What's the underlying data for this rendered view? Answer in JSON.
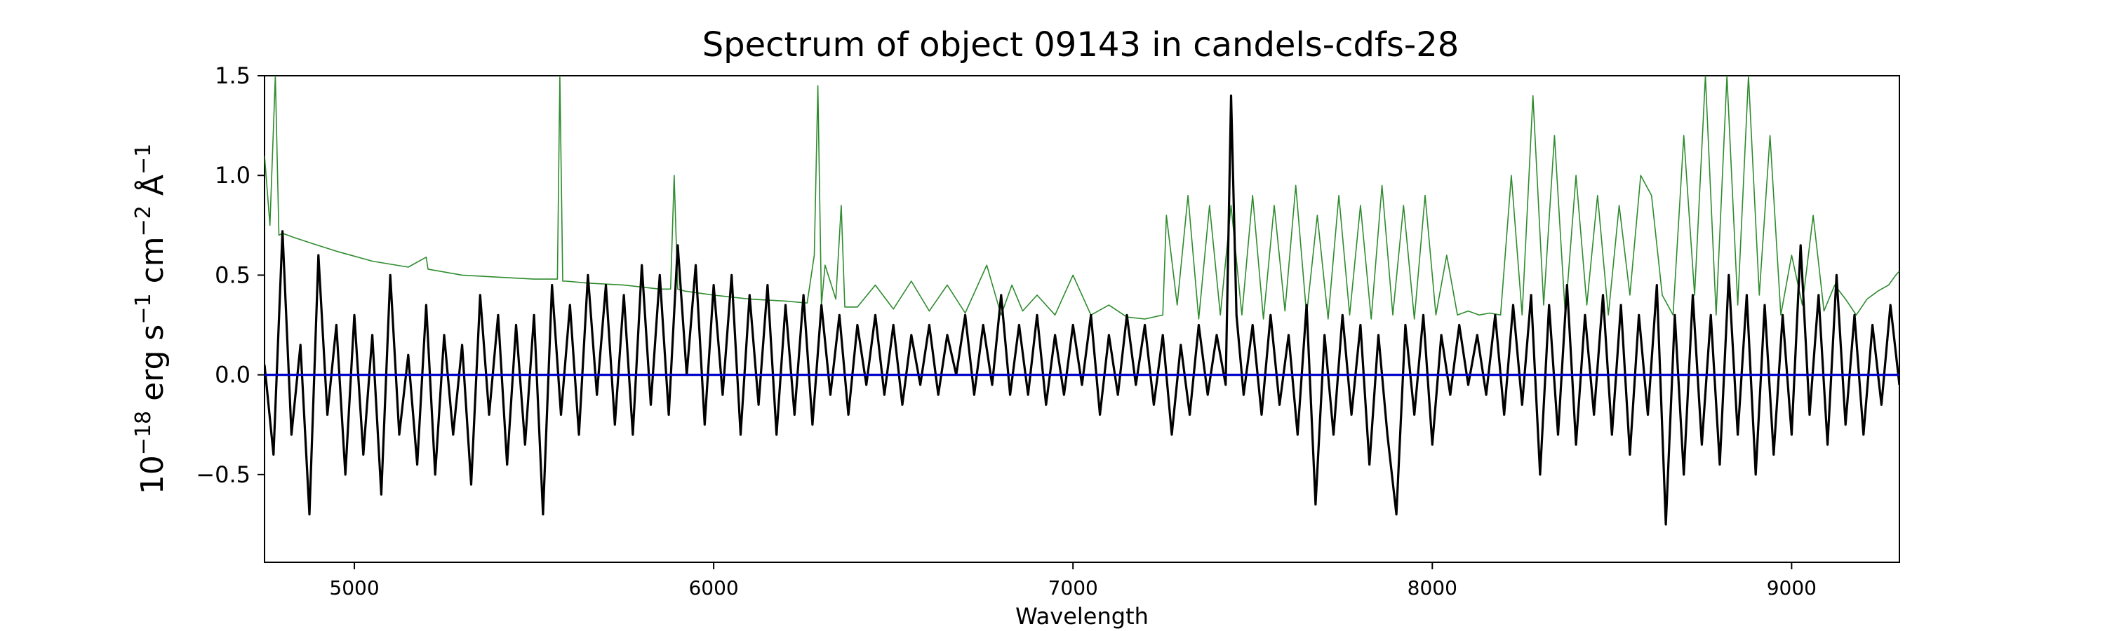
{
  "chart_data": {
    "type": "line",
    "title": "Spectrum of object 09143 in candels-cdfs-28",
    "xlabel": "Wavelength",
    "ylabel": {
      "base": "10",
      "exp": "−18",
      "u1": " erg s",
      "e1": "−1",
      "u2": " cm",
      "e2": "−2",
      "u3": " Å",
      "e3": "−1"
    },
    "xlim": [
      4750,
      9300
    ],
    "ylim": [
      -0.94,
      1.5
    ],
    "xticks": [
      5000,
      6000,
      7000,
      8000,
      9000
    ],
    "xtick_labels": [
      "5000",
      "6000",
      "7000",
      "8000",
      "9000"
    ],
    "yticks": [
      -0.5,
      0.0,
      0.5,
      1.0,
      1.5
    ],
    "ytick_labels": [
      "−0.5",
      "0.0",
      "0.5",
      "1.0",
      "1.5"
    ],
    "grid": false,
    "series": [
      {
        "role": "flux",
        "color": "#000000",
        "x": [
          4750,
          4775,
          4800,
          4825,
          4850,
          4875,
          4900,
          4925,
          4950,
          4975,
          5000,
          5025,
          5050,
          5075,
          5100,
          5125,
          5150,
          5175,
          5200,
          5225,
          5250,
          5275,
          5300,
          5325,
          5350,
          5375,
          5400,
          5425,
          5450,
          5475,
          5500,
          5525,
          5550,
          5575,
          5600,
          5625,
          5650,
          5675,
          5700,
          5725,
          5750,
          5775,
          5800,
          5825,
          5850,
          5875,
          5900,
          5925,
          5950,
          5975,
          6000,
          6025,
          6050,
          6075,
          6100,
          6125,
          6150,
          6175,
          6200,
          6225,
          6250,
          6275,
          6300,
          6325,
          6350,
          6375,
          6400,
          6425,
          6450,
          6475,
          6500,
          6525,
          6550,
          6575,
          6600,
          6625,
          6650,
          6675,
          6700,
          6725,
          6750,
          6775,
          6800,
          6825,
          6850,
          6875,
          6900,
          6925,
          6950,
          6975,
          7000,
          7025,
          7050,
          7075,
          7100,
          7125,
          7150,
          7175,
          7200,
          7225,
          7250,
          7275,
          7300,
          7325,
          7350,
          7375,
          7400,
          7425,
          7440,
          7455,
          7475,
          7500,
          7525,
          7550,
          7575,
          7600,
          7625,
          7650,
          7675,
          7700,
          7725,
          7750,
          7775,
          7800,
          7825,
          7850,
          7875,
          7900,
          7925,
          7950,
          7975,
          8000,
          8025,
          8050,
          8075,
          8100,
          8125,
          8150,
          8175,
          8200,
          8225,
          8250,
          8275,
          8300,
          8325,
          8350,
          8375,
          8400,
          8425,
          8450,
          8475,
          8500,
          8525,
          8550,
          8575,
          8600,
          8625,
          8650,
          8675,
          8700,
          8725,
          8750,
          8775,
          8800,
          8825,
          8850,
          8875,
          8900,
          8925,
          8950,
          8975,
          9000,
          9025,
          9050,
          9075,
          9100,
          9125,
          9150,
          9175,
          9200,
          9225,
          9250,
          9275,
          9300
        ],
        "y": [
          0.05,
          -0.4,
          0.72,
          -0.3,
          0.15,
          -0.7,
          0.6,
          -0.2,
          0.25,
          -0.5,
          0.3,
          -0.4,
          0.2,
          -0.6,
          0.5,
          -0.3,
          0.1,
          -0.45,
          0.35,
          -0.5,
          0.2,
          -0.3,
          0.15,
          -0.55,
          0.4,
          -0.2,
          0.3,
          -0.45,
          0.25,
          -0.35,
          0.3,
          -0.7,
          0.45,
          -0.2,
          0.35,
          -0.3,
          0.5,
          -0.1,
          0.45,
          -0.25,
          0.4,
          -0.3,
          0.55,
          -0.15,
          0.5,
          -0.2,
          0.65,
          0.0,
          0.55,
          -0.25,
          0.45,
          -0.1,
          0.5,
          -0.3,
          0.4,
          -0.15,
          0.45,
          -0.3,
          0.35,
          -0.2,
          0.4,
          -0.25,
          0.35,
          -0.1,
          0.3,
          -0.2,
          0.25,
          -0.05,
          0.3,
          -0.1,
          0.25,
          -0.15,
          0.2,
          -0.05,
          0.25,
          -0.1,
          0.2,
          0.0,
          0.3,
          -0.1,
          0.25,
          -0.05,
          0.4,
          -0.1,
          0.25,
          -0.1,
          0.3,
          -0.15,
          0.2,
          -0.1,
          0.25,
          -0.05,
          0.3,
          -0.2,
          0.2,
          -0.1,
          0.3,
          -0.05,
          0.25,
          -0.15,
          0.2,
          -0.3,
          0.15,
          -0.2,
          0.25,
          -0.1,
          0.2,
          -0.05,
          1.4,
          0.3,
          -0.1,
          0.25,
          -0.2,
          0.3,
          -0.15,
          0.2,
          -0.3,
          0.35,
          -0.65,
          0.2,
          -0.3,
          0.3,
          -0.2,
          0.25,
          -0.45,
          0.2,
          -0.3,
          -0.7,
          0.25,
          -0.2,
          0.3,
          -0.35,
          0.2,
          -0.1,
          0.25,
          -0.05,
          0.2,
          -0.1,
          0.3,
          -0.2,
          0.35,
          -0.15,
          0.4,
          -0.5,
          0.35,
          -0.3,
          0.45,
          -0.35,
          0.3,
          -0.2,
          0.4,
          -0.3,
          0.35,
          -0.4,
          0.3,
          -0.2,
          0.45,
          -0.75,
          0.3,
          -0.5,
          0.4,
          -0.35,
          0.3,
          -0.45,
          0.5,
          -0.3,
          0.4,
          -0.5,
          0.35,
          -0.4,
          0.3,
          -0.3,
          0.65,
          -0.2,
          0.4,
          -0.35,
          0.5,
          -0.25,
          0.3,
          -0.3,
          0.25,
          -0.15,
          0.35,
          -0.05
        ]
      },
      {
        "role": "error",
        "color": "#2e8b2e",
        "x": [
          4750,
          4765,
          4780,
          4790,
          4800,
          4830,
          4880,
          4950,
          5050,
          5150,
          5200,
          5205,
          5300,
          5400,
          5500,
          5565,
          5572,
          5580,
          5590,
          5650,
          5750,
          5850,
          5880,
          5890,
          5900,
          5920,
          6000,
          6100,
          6200,
          6260,
          6280,
          6290,
          6300,
          6310,
          6340,
          6355,
          6365,
          6400,
          6450,
          6500,
          6550,
          6600,
          6650,
          6700,
          6760,
          6800,
          6830,
          6860,
          6900,
          6950,
          7000,
          7050,
          7100,
          7150,
          7200,
          7250,
          7260,
          7290,
          7320,
          7350,
          7380,
          7410,
          7440,
          7470,
          7500,
          7530,
          7560,
          7590,
          7620,
          7650,
          7680,
          7710,
          7740,
          7770,
          7800,
          7830,
          7860,
          7890,
          7920,
          7950,
          7980,
          8010,
          8040,
          8070,
          8100,
          8130,
          8160,
          8190,
          8220,
          8250,
          8280,
          8310,
          8340,
          8370,
          8400,
          8430,
          8460,
          8490,
          8520,
          8550,
          8580,
          8610,
          8640,
          8670,
          8700,
          8730,
          8760,
          8790,
          8820,
          8850,
          8880,
          8910,
          8940,
          8970,
          9000,
          9030,
          9060,
          9090,
          9120,
          9150,
          9180,
          9210,
          9240,
          9270,
          9290,
          9300
        ],
        "y": [
          1.1,
          0.75,
          1.5,
          0.7,
          0.71,
          0.69,
          0.66,
          0.62,
          0.57,
          0.54,
          0.59,
          0.53,
          0.5,
          0.49,
          0.48,
          0.48,
          1.5,
          0.47,
          0.47,
          0.46,
          0.45,
          0.43,
          0.43,
          1.0,
          0.43,
          0.42,
          0.4,
          0.38,
          0.37,
          0.36,
          0.6,
          1.45,
          0.35,
          0.55,
          0.38,
          0.85,
          0.34,
          0.34,
          0.45,
          0.33,
          0.47,
          0.32,
          0.45,
          0.31,
          0.55,
          0.3,
          0.45,
          0.32,
          0.4,
          0.3,
          0.5,
          0.3,
          0.35,
          0.29,
          0.28,
          0.3,
          0.8,
          0.35,
          0.9,
          0.28,
          0.85,
          0.3,
          0.85,
          0.3,
          0.9,
          0.28,
          0.85,
          0.32,
          0.95,
          0.3,
          0.8,
          0.28,
          0.9,
          0.3,
          0.85,
          0.28,
          0.95,
          0.3,
          0.85,
          0.28,
          0.9,
          0.3,
          0.6,
          0.3,
          0.32,
          0.3,
          0.31,
          0.3,
          1.0,
          0.3,
          1.4,
          0.35,
          1.2,
          0.3,
          1.0,
          0.35,
          0.9,
          0.3,
          0.85,
          0.4,
          1.0,
          0.9,
          0.4,
          0.3,
          1.2,
          0.4,
          1.5,
          0.3,
          1.5,
          0.35,
          1.5,
          0.4,
          1.2,
          0.3,
          0.6,
          0.35,
          0.8,
          0.32,
          0.45,
          0.38,
          0.3,
          0.38,
          0.42,
          0.45,
          0.5,
          0.52
        ]
      },
      {
        "role": "zero",
        "color": "#0000cc",
        "x": [
          4750,
          9300
        ],
        "y": [
          0,
          0
        ]
      }
    ]
  }
}
